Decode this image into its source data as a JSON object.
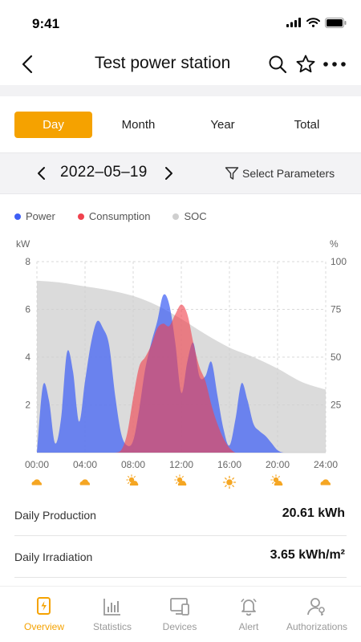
{
  "status_bar": {
    "time": "9:41"
  },
  "nav": {
    "title": "Test power station"
  },
  "tabs": [
    {
      "label": "Day",
      "active": true
    },
    {
      "label": "Month",
      "active": false
    },
    {
      "label": "Year",
      "active": false
    },
    {
      "label": "Total",
      "active": false
    }
  ],
  "date_selector": {
    "date": "2022–05–19",
    "select_params_label": "Select Parameters"
  },
  "colors": {
    "accent": "#f5a200",
    "power": "#3e5ff5",
    "consumption": "#f0424e",
    "soc": "#cfcfcf",
    "weather": "#f5a623"
  },
  "chart_data": {
    "type": "area",
    "series": [
      {
        "name": "Power",
        "axis": "left",
        "color": "#3e5ff5",
        "x": [
          0,
          0.5,
          1,
          1.5,
          2,
          2.5,
          3,
          3.5,
          4,
          4.5,
          5,
          5.5,
          6,
          6.5,
          7,
          7.5,
          8,
          8.5,
          9,
          9.5,
          10,
          10.5,
          11,
          11.5,
          12,
          12.5,
          13,
          13.5,
          14,
          14.5,
          15,
          15.5,
          16,
          16.5,
          17,
          17.5,
          18,
          18.5,
          19,
          19.5,
          20,
          20.5,
          21,
          21.5,
          22,
          22.5,
          23,
          23.5,
          24
        ],
        "values": [
          0,
          2.8,
          2.2,
          0.4,
          1.4,
          4.2,
          3.4,
          1.3,
          3.0,
          4.6,
          5.5,
          5.2,
          4.5,
          2.4,
          0.8,
          0.3,
          0.5,
          1.8,
          3.5,
          4.6,
          5.5,
          6.6,
          6.2,
          4.6,
          2.5,
          3.8,
          4.6,
          3.2,
          3.2,
          3.8,
          2.4,
          1.0,
          0.3,
          1.4,
          2.9,
          2.2,
          1.2,
          0.9,
          0.7,
          0.4,
          0.1,
          0,
          0,
          0,
          0,
          0,
          0,
          0,
          0
        ]
      },
      {
        "name": "Consumption",
        "axis": "left",
        "color": "#f0424e",
        "x": [
          0,
          0.5,
          1,
          1.5,
          2,
          2.5,
          3,
          3.5,
          4,
          4.5,
          5,
          5.5,
          6,
          6.5,
          7,
          7.5,
          8,
          8.5,
          9,
          9.5,
          10,
          10.5,
          11,
          11.5,
          12,
          12.5,
          13,
          13.5,
          14,
          14.5,
          15,
          15.5,
          16,
          16.5,
          17,
          17.5,
          18,
          18.5,
          19,
          19.5,
          20,
          20.5,
          21,
          21.5,
          22,
          22.5,
          23,
          23.5,
          24
        ],
        "values": [
          0,
          0,
          0,
          0,
          0,
          0,
          0,
          0,
          0,
          0,
          0,
          0,
          0,
          0,
          0.1,
          0.8,
          2.3,
          3.6,
          4.0,
          4.5,
          5.2,
          5.4,
          5.3,
          5.8,
          6.2,
          5.8,
          4.6,
          3.6,
          3.0,
          2.0,
          1.2,
          0.6,
          0.2,
          0,
          0,
          0,
          0,
          0,
          0,
          0,
          0,
          0,
          0,
          0,
          0,
          0,
          0,
          0,
          0
        ]
      },
      {
        "name": "SOC",
        "axis": "right",
        "color": "#cfcfcf",
        "x": [
          0,
          2,
          4,
          6,
          8,
          10,
          12,
          14,
          16,
          18,
          20,
          22,
          24
        ],
        "values": [
          90,
          89,
          87,
          85,
          82,
          77,
          70,
          62,
          55,
          50,
          44,
          37,
          33
        ]
      }
    ],
    "x_ticks": [
      "00:00",
      "04:00",
      "08:00",
      "12:00",
      "16:00",
      "20:00",
      "24:00"
    ],
    "y_left": {
      "label": "kW",
      "ticks": [
        "8",
        "6",
        "4",
        "2"
      ],
      "range": [
        0,
        8
      ]
    },
    "y_right": {
      "label": "%",
      "ticks": [
        "100",
        "75",
        "50",
        "25"
      ],
      "range": [
        0,
        100
      ]
    },
    "xlim": [
      0,
      24
    ],
    "grid": true,
    "weather_icons": [
      "cloudy-icon",
      "cloudy-icon",
      "partly-sunny-icon",
      "partly-sunny-icon",
      "sunny-icon",
      "partly-sunny-icon",
      "cloudy-icon"
    ]
  },
  "stats": [
    {
      "label": "Daily Production",
      "value": "20.61 kWh"
    },
    {
      "label": "Daily Irradiation",
      "value": "3.65 kWh/m²"
    }
  ],
  "bottom_nav": [
    {
      "label": "Overview",
      "icon": "overview-icon",
      "active": true
    },
    {
      "label": "Statistics",
      "icon": "statistics-icon",
      "active": false
    },
    {
      "label": "Devices",
      "icon": "devices-icon",
      "active": false
    },
    {
      "label": "Alert",
      "icon": "bell-icon",
      "active": false
    },
    {
      "label": "Authorizations",
      "icon": "user-key-icon",
      "active": false
    }
  ]
}
